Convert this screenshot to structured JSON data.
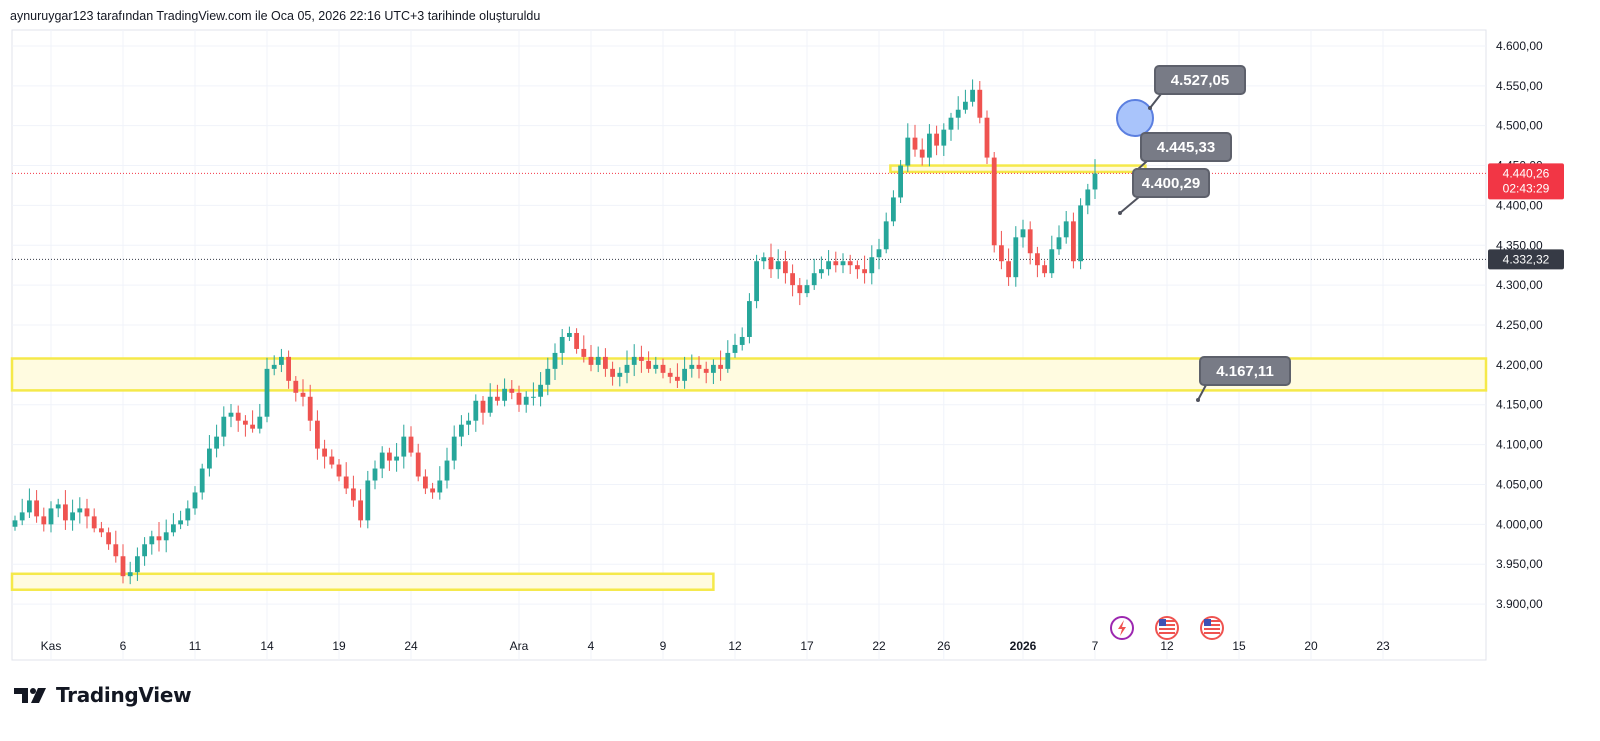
{
  "header": {
    "attribution": "aynuruygar123 tarafından TradingView.com ile Oca 05, 2026 22:16 UTC+3 tarihinde oluşturuldu"
  },
  "footer": {
    "brand": "TradingView",
    "logo_icon": "tradingview-logo-icon"
  },
  "colors": {
    "up": "#26a69a",
    "down": "#ef5350",
    "zone_border": "#f5e94a",
    "zone_fill": "#fffbe0",
    "callout_bg": "#787b86",
    "price_tag_red": "#f23645",
    "price_tag_dark": "#363a45",
    "circle_fill": "#a9c4fb",
    "circle_border": "#5b7fe0"
  },
  "chart_data": {
    "type": "candlestick",
    "ylim": [
      3870,
      4620
    ],
    "y_ticks": [
      "4.600,00",
      "4.550,00",
      "4.500,00",
      "4.450,00",
      "4.400,00",
      "4.350,00",
      "4.300,00",
      "4.250,00",
      "4.200,00",
      "4.150,00",
      "4.100,00",
      "4.050,00",
      "4.000,00",
      "3.950,00",
      "3.900,00"
    ],
    "y_tick_values": [
      4600,
      4550,
      4500,
      4450,
      4400,
      4350,
      4300,
      4250,
      4200,
      4150,
      4100,
      4050,
      4000,
      3950,
      3900
    ],
    "x_ticks": [
      {
        "label": "Kas",
        "bar": 5,
        "bold": false
      },
      {
        "label": "6",
        "bar": 15,
        "bold": false
      },
      {
        "label": "11",
        "bar": 25,
        "bold": false
      },
      {
        "label": "14",
        "bar": 35,
        "bold": false
      },
      {
        "label": "19",
        "bar": 45,
        "bold": false
      },
      {
        "label": "24",
        "bar": 55,
        "bold": false
      },
      {
        "label": "Ara",
        "bar": 70,
        "bold": false
      },
      {
        "label": "4",
        "bar": 80,
        "bold": false
      },
      {
        "label": "9",
        "bar": 90,
        "bold": false
      },
      {
        "label": "12",
        "bar": 100,
        "bold": false
      },
      {
        "label": "17",
        "bar": 110,
        "bold": false
      },
      {
        "label": "22",
        "bar": 120,
        "bold": false
      },
      {
        "label": "26",
        "bar": 129,
        "bold": false
      },
      {
        "label": "2026",
        "bar": 140,
        "bold": true
      },
      {
        "label": "7",
        "bar": 150,
        "bold": false
      },
      {
        "label": "12",
        "bar": 160,
        "bold": false
      },
      {
        "label": "15",
        "bar": 170,
        "bold": false
      },
      {
        "label": "20",
        "bar": 180,
        "bold": false
      },
      {
        "label": "23",
        "bar": 190,
        "bold": false
      }
    ],
    "closes": [
      4005,
      4015,
      4030,
      4010,
      4000,
      4020,
      4025,
      4005,
      4015,
      4020,
      4010,
      3995,
      3990,
      3975,
      3960,
      3935,
      3940,
      3960,
      3975,
      3985,
      3980,
      3990,
      4000,
      4005,
      4020,
      4040,
      4070,
      4095,
      4110,
      4135,
      4140,
      4130,
      4125,
      4120,
      4135,
      4195,
      4200,
      4210,
      4180,
      4165,
      4160,
      4130,
      4095,
      4085,
      4075,
      4060,
      4045,
      4030,
      4005,
      4055,
      4070,
      4090,
      4080,
      4085,
      4110,
      4090,
      4060,
      4045,
      4040,
      4055,
      4080,
      4110,
      4125,
      4130,
      4155,
      4140,
      4160,
      4155,
      4170,
      4165,
      4150,
      4160,
      4160,
      4175,
      4195,
      4215,
      4235,
      4240,
      4220,
      4210,
      4200,
      4210,
      4195,
      4185,
      4190,
      4200,
      4210,
      4205,
      4195,
      4200,
      4190,
      4185,
      4180,
      4195,
      4200,
      4195,
      4190,
      4200,
      4195,
      4215,
      4225,
      4235,
      4280,
      4330,
      4335,
      4320,
      4330,
      4315,
      4300,
      4290,
      4300,
      4315,
      4320,
      4330,
      4325,
      4330,
      4325,
      4320,
      4315,
      4335,
      4345,
      4380,
      4410,
      4450,
      4485,
      4470,
      4460,
      4490,
      4475,
      4495,
      4510,
      4520,
      4530,
      4545,
      4510,
      4460,
      4350,
      4330,
      4310,
      4360,
      4370,
      4340,
      4325,
      4315,
      4345,
      4360,
      4380,
      4330,
      4400,
      4420,
      4440
    ],
    "levels": [
      {
        "value": 4527.05,
        "label": "4.527,05"
      },
      {
        "value": 4445.33,
        "label": "4.445,33"
      },
      {
        "value": 4400.29,
        "label": "4.400,29"
      },
      {
        "value": 4167.11,
        "label": "4.167,11"
      }
    ],
    "zones": [
      {
        "from": 4168,
        "to": 4208,
        "bar_start": 0,
        "extends_right": true
      },
      {
        "from": 4442,
        "to": 4450,
        "bar_start": 122,
        "bar_end": 157,
        "extends_right": false
      },
      {
        "from": 3918,
        "to": 3938,
        "bar_start": 0,
        "bar_end": 97,
        "extends_right": false
      }
    ],
    "current_price": {
      "label": "4.440,26",
      "countdown": "02:43:29",
      "value": 4440.26
    },
    "ref_price": {
      "label": "4.332,32",
      "value": 4332.32
    },
    "event_icons": [
      "lightning-event-icon",
      "us-flag-icon",
      "us-flag-icon"
    ]
  }
}
